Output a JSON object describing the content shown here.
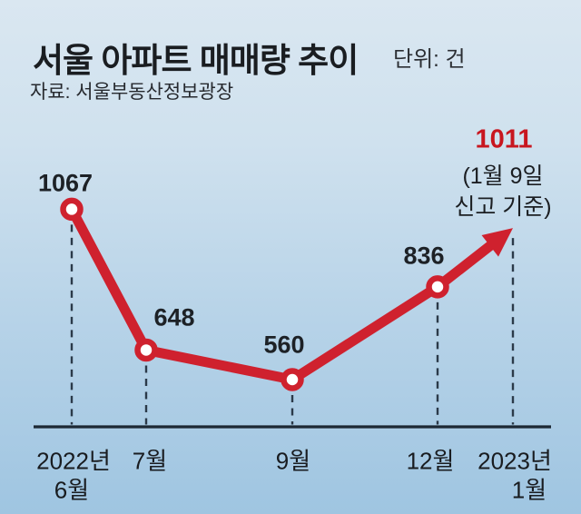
{
  "header": {
    "title": "서울 아파트 매매량 추이",
    "unit_label": "단위: 건",
    "source": "자료: 서울부동산정보광장"
  },
  "annotation": {
    "note_line1": "(1월 9일",
    "note_line2": "신고 기준)"
  },
  "colors": {
    "line_red": "#cf212e",
    "label_red": "#c8161f",
    "marker_fill": "#ffffff",
    "dash": "#2b3a49",
    "axis": "#1c2833",
    "text": "#1b1e22",
    "bg_top": "#d9e6f1",
    "bg_bottom": "#9fc5e1"
  },
  "chart_data": {
    "type": "line",
    "title": "서울 아파트 매매량 추이",
    "unit": "건",
    "source": "서울부동산정보광장",
    "categories": [
      "2022년 6월",
      "7월",
      "9월",
      "12월",
      "2023년 1월"
    ],
    "values": [
      1067,
      648,
      560,
      836,
      1011
    ],
    "ylim": [
      430,
      1130
    ],
    "grid": false,
    "legend": "none",
    "last_point_style": "arrow",
    "x_axis": [
      {
        "line1": "2022년",
        "line2": "6월"
      },
      {
        "line1": "7월"
      },
      {
        "line1": "9월"
      },
      {
        "line1": "12월"
      },
      {
        "line1": "2023년",
        "line2": "1월"
      }
    ]
  }
}
